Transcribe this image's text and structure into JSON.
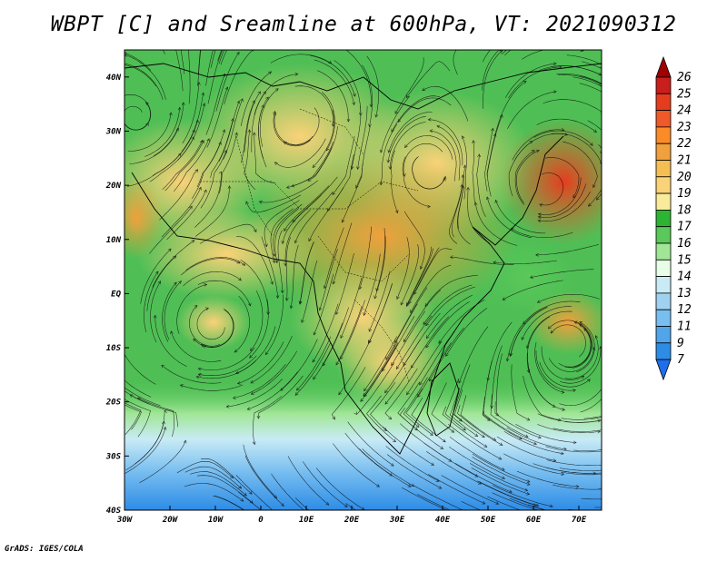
{
  "title": "WBPT [C] and Sreamline at 600hPa, VT: 2021090312",
  "credit": "GrADS: IGES/COLA",
  "map": {
    "lat_labels": [
      "40N",
      "30N",
      "20N",
      "10N",
      "EQ",
      "10S",
      "20S",
      "30S",
      "40S"
    ],
    "lat_values": [
      40,
      30,
      20,
      10,
      0,
      -10,
      -20,
      -30,
      -40
    ],
    "lon_labels": [
      "30W",
      "20W",
      "10W",
      "0",
      "10E",
      "20E",
      "30E",
      "40E",
      "50E",
      "60E",
      "70E"
    ],
    "lon_values": [
      -30,
      -20,
      -10,
      0,
      10,
      20,
      30,
      40,
      50,
      60,
      70
    ],
    "lon_range": [
      -30,
      75
    ],
    "lat_range": [
      -40,
      45
    ]
  },
  "colorbar": {
    "labels": [
      "26",
      "25",
      "24",
      "23",
      "22",
      "21",
      "20",
      "19",
      "18",
      "17",
      "16",
      "15",
      "14",
      "13",
      "12",
      "11",
      "9",
      "7"
    ],
    "colors": [
      "#a00000",
      "#c81e1e",
      "#e63c1e",
      "#f05a28",
      "#fa8c28",
      "#f0a03c",
      "#f5be55",
      "#fad278",
      "#faeb9b",
      "#2db432",
      "#5ac85a",
      "#a0e696",
      "#e6ffe6",
      "#c8ebf5",
      "#a0d2f0",
      "#78bef0",
      "#50a5eb",
      "#2d8ce6",
      "#1e6eeb"
    ]
  }
}
